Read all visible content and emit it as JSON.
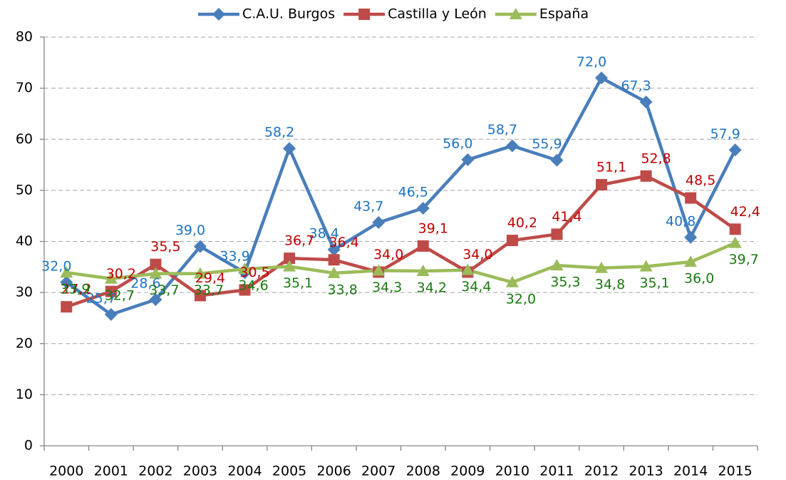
{
  "chart_data": {
    "type": "line",
    "categories": [
      "2000",
      "2001",
      "2002",
      "2003",
      "2004",
      "2005",
      "2006",
      "2007",
      "2008",
      "2009",
      "2010",
      "2011",
      "2012",
      "2013",
      "2014",
      "2015"
    ],
    "series": [
      {
        "name": "C.A.U. Burgos",
        "color": "#4a7ebb",
        "marker": "diamond",
        "values": [
          32.0,
          25.7,
          28.6,
          39.0,
          33.9,
          58.2,
          38.4,
          43.7,
          46.5,
          56.0,
          58.7,
          55.9,
          72.0,
          67.3,
          40.8,
          57.9
        ],
        "value_labels": [
          "32,0",
          "25,7",
          "28,6",
          "39,0",
          "33,9",
          "58,2",
          "38,4",
          "43,7",
          "46,5",
          "56,0",
          "58,7",
          "55,9",
          "72,0",
          "67,3",
          "40,8",
          "57,9"
        ]
      },
      {
        "name": "Castilla y León",
        "color": "#be4b48",
        "marker": "square",
        "values": [
          27.2,
          30.2,
          35.5,
          29.4,
          30.5,
          36.7,
          36.4,
          34.0,
          39.1,
          34.0,
          40.2,
          41.4,
          51.1,
          52.8,
          48.5,
          42.4
        ],
        "value_labels": [
          "27,2",
          "30,2",
          "35,5",
          "29,4",
          "30,5",
          "36,7",
          "36,4",
          "34,0",
          "39,1",
          "34,0",
          "40,2",
          "41,4",
          "51,1",
          "52,8",
          "48,5",
          "42,4"
        ]
      },
      {
        "name": "España",
        "color": "#9bbb59",
        "marker": "triangle",
        "values": [
          33.9,
          32.7,
          33.7,
          33.7,
          34.6,
          35.1,
          33.8,
          34.3,
          34.2,
          34.4,
          32.0,
          35.3,
          34.8,
          35.1,
          36.0,
          39.7
        ],
        "value_labels": [
          "33,9",
          "32,7",
          "33,7",
          "33,7",
          "34,6",
          "35,1",
          "33,8",
          "34,3",
          "34,2",
          "34,4",
          "32,0",
          "35,3",
          "34,8",
          "35,1",
          "36,0",
          "39,7"
        ]
      }
    ],
    "ylim": [
      0,
      80
    ],
    "yticks": [
      0,
      10,
      20,
      30,
      40,
      50,
      60,
      70,
      80
    ],
    "grid": true,
    "legend": "top"
  }
}
